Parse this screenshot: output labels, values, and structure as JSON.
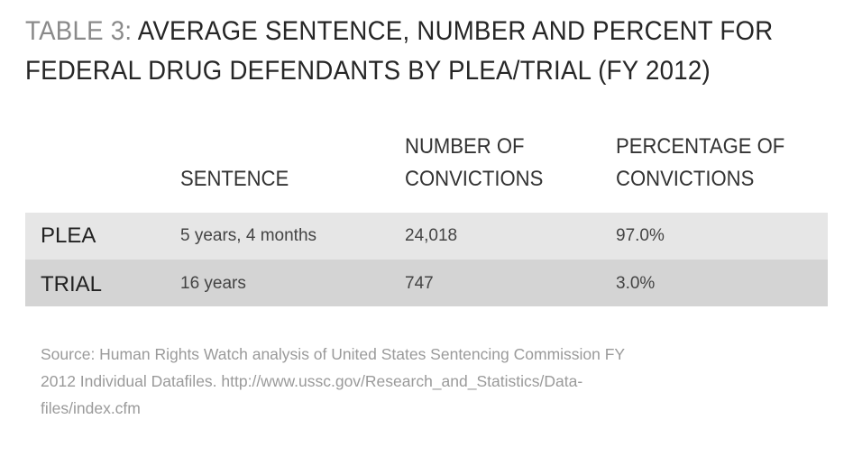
{
  "title": {
    "label": "TABLE 3:",
    "line1": "AVERAGE SENTENCE, NUMBER AND PERCENT FOR",
    "line2": "FEDERAL DRUG DEFENDANTS BY PLEA/TRIAL (FY 2012)"
  },
  "table": {
    "headers": {
      "sentence": "SENTENCE",
      "number_line1": "NUMBER OF",
      "number_line2": "CONVICTIONS",
      "percent_line1": "PERCENTAGE OF",
      "percent_line2": "CONVICTIONS"
    },
    "rows": [
      {
        "label": "PLEA",
        "sentence": "5 years, 4 months",
        "number": "24,018",
        "percent": "97.0%"
      },
      {
        "label": "TRIAL",
        "sentence": "16 years",
        "number": "747",
        "percent": "3.0%"
      }
    ]
  },
  "source": {
    "line1": "Source: Human Rights Watch analysis of United States Sentencing Commission FY",
    "line2": "2012 Individual Datafiles. http://www.ussc.gov/Research_and_Statistics/Data-",
    "line3": "files/index.cfm"
  },
  "colors": {
    "row1": "#e6e6e6",
    "row2": "#d4d4d4",
    "label": "#8a8a8a"
  }
}
